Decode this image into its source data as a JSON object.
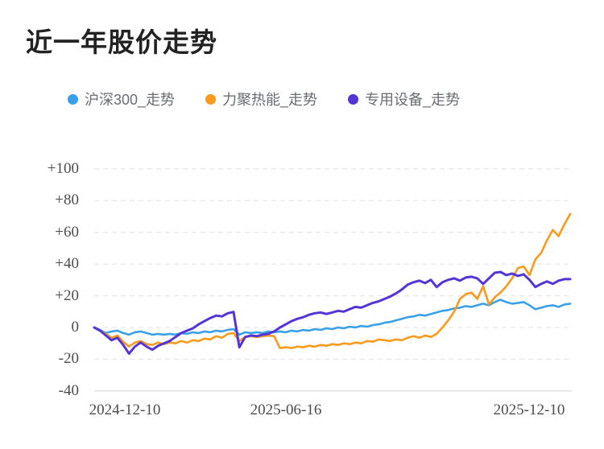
{
  "title": "近一年股价走势",
  "legend": {
    "items": [
      {
        "label": "沪深300_走势",
        "color": "#3aa0e8"
      },
      {
        "label": "力聚热能_走势",
        "color": "#f89a1c"
      },
      {
        "label": "专用设备_走势",
        "color": "#5534d6"
      }
    ]
  },
  "colors": {
    "grid_line": "#e8e8e8",
    "axis_line": "#e3e3e3",
    "axis_text": "#4c4c4c",
    "legend_text": "#696c72",
    "title_text": "#222222"
  },
  "chart_data": {
    "type": "line",
    "title": "近一年股价走势",
    "xlabel": "",
    "ylabel": "",
    "x_tick_labels": [
      "2024-12-10",
      "2025-06-16",
      "2025-12-10"
    ],
    "y_tick_labels": [
      "+100",
      "+80",
      "+60",
      "+40",
      "+20",
      "0",
      "-20",
      "-40"
    ],
    "y_tick_values": [
      100,
      80,
      60,
      40,
      20,
      0,
      -20,
      -40
    ],
    "ylim": [
      -40,
      100
    ],
    "grid": "dashed horizontal lines, solid bottom axis",
    "legend_position": "top",
    "series": [
      {
        "name": "沪深300_走势",
        "color": "#3aa0e8",
        "end_value": 15,
        "values": [
          0,
          -1.5,
          -3.5,
          -2.5,
          -2,
          -3.5,
          -4.5,
          -3,
          -2.5,
          -3.5,
          -4.5,
          -4,
          -4.5,
          -4,
          -4.5,
          -3.5,
          -4,
          -3,
          -3.5,
          -2.5,
          -3,
          -2,
          -2.5,
          -1.5,
          -1,
          -4.5,
          -3,
          -3.5,
          -3,
          -3.5,
          -2.5,
          -3,
          -2.5,
          -3,
          -2,
          -2.5,
          -1.5,
          -2,
          -1,
          -1.5,
          -0.5,
          -1,
          0,
          -0.5,
          0.5,
          0,
          1,
          0.5,
          1.5,
          2,
          3,
          3.5,
          4.5,
          5.5,
          6.5,
          7,
          8,
          7.5,
          8.5,
          9.5,
          10.5,
          11,
          12,
          12.5,
          13.5,
          13,
          14,
          15,
          14,
          16,
          17.5,
          16,
          15,
          15.5,
          16,
          14,
          11.5,
          12.5,
          13.5,
          14,
          13,
          14.5,
          15
        ]
      },
      {
        "name": "力聚热能_走势",
        "color": "#f89a1c",
        "end_value": 71.5,
        "values": [
          0,
          -2,
          -4,
          -6.5,
          -5,
          -9,
          -12,
          -9.5,
          -8.5,
          -10.5,
          -11,
          -9.5,
          -10.5,
          -9.5,
          -10,
          -8.5,
          -9.5,
          -8,
          -8.5,
          -7,
          -7.5,
          -5.5,
          -6.5,
          -4,
          -3.5,
          -8.5,
          -6,
          -5.5,
          -6,
          -5.5,
          -5,
          -5.5,
          -13,
          -12.5,
          -13,
          -12,
          -12.5,
          -11.5,
          -12,
          -11,
          -11.5,
          -10.5,
          -11,
          -10,
          -10.5,
          -9.5,
          -10,
          -8.5,
          -9,
          -7.5,
          -8,
          -8.5,
          -7.5,
          -8,
          -6.5,
          -5.5,
          -6.5,
          -5,
          -6,
          -4,
          0,
          4.5,
          10,
          18,
          21,
          22,
          18,
          26,
          14.5,
          19,
          22,
          26,
          31,
          37.5,
          38.5,
          33,
          43,
          47,
          55,
          61.5,
          57.5,
          65,
          71.5
        ]
      },
      {
        "name": "专用设备_走势",
        "color": "#5534d6",
        "end_value": 30.5,
        "values": [
          0,
          -2,
          -5,
          -8,
          -6.5,
          -11,
          -16.5,
          -12,
          -9.5,
          -12,
          -14,
          -11.5,
          -10,
          -8.5,
          -6,
          -3.5,
          -2,
          -0.5,
          2,
          4,
          6,
          7.5,
          7,
          9,
          9.8,
          -12.5,
          -6,
          -5,
          -5.5,
          -4.5,
          -4,
          -2.5,
          0,
          2,
          4,
          5.5,
          6.5,
          8,
          9,
          9.5,
          8.5,
          9.5,
          10.5,
          10,
          11.5,
          13,
          12.5,
          14,
          15.5,
          16.5,
          18,
          19.5,
          21.5,
          24,
          27,
          28.5,
          29.5,
          28,
          30,
          25.5,
          28.5,
          30,
          31,
          29.5,
          31.5,
          32,
          31,
          27.5,
          31,
          34.5,
          35,
          33,
          34,
          32.5,
          33.5,
          30,
          25.5,
          27.5,
          29,
          27.5,
          29.5,
          30.5,
          30.5
        ]
      }
    ]
  }
}
